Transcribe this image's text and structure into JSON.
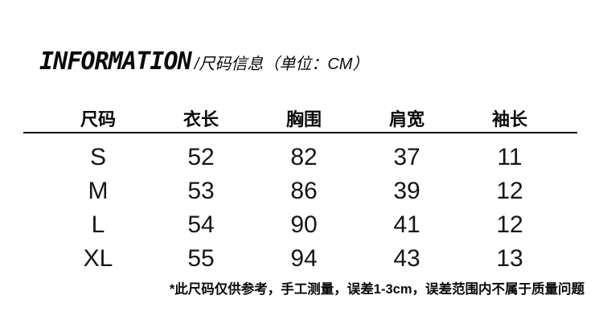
{
  "colors": {
    "background": "#ffffff",
    "text": "#0a0a0a",
    "divider": "#0a0a0a"
  },
  "header": {
    "title": "INFORMATION",
    "subtitle": "/尺码信息（单位：CM）"
  },
  "size_table": {
    "columns": [
      "尺码",
      "衣长",
      "胸围",
      "肩宽",
      "袖长"
    ],
    "rows": [
      {
        "size": "S",
        "values": [
          "52",
          "82",
          "37",
          "11"
        ]
      },
      {
        "size": "M",
        "values": [
          "53",
          "86",
          "39",
          "12"
        ]
      },
      {
        "size": "L",
        "values": [
          "54",
          "90",
          "41",
          "12"
        ]
      },
      {
        "size": "XL",
        "values": [
          "55",
          "94",
          "43",
          "13"
        ]
      }
    ]
  },
  "footnote": "*此尺码仅供参考，手工测量，误差1-3cm，误差范围内不属于质量问题"
}
